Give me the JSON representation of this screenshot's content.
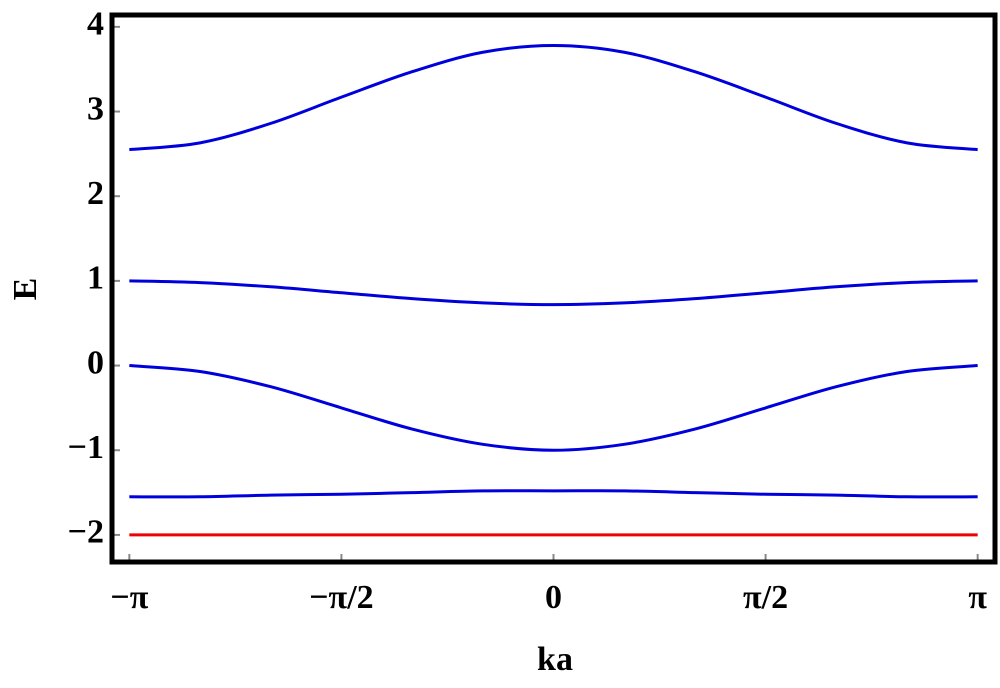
{
  "chart_data": {
    "type": "line",
    "x_label": "ka",
    "y_label": "E",
    "x": [
      -3.1416,
      -2.618,
      -2.0944,
      -1.5708,
      -1.0472,
      -0.5236,
      0,
      0.5236,
      1.0472,
      1.5708,
      2.0944,
      2.618,
      3.1416
    ],
    "series": [
      {
        "color": "#0000dd",
        "values": [
          2.55,
          2.63,
          2.86,
          3.17,
          3.47,
          3.7,
          3.78,
          3.7,
          3.47,
          3.17,
          2.86,
          2.63,
          2.55
        ]
      },
      {
        "color": "#0000dd",
        "values": [
          1.0,
          0.98,
          0.93,
          0.86,
          0.79,
          0.74,
          0.72,
          0.74,
          0.79,
          0.86,
          0.93,
          0.98,
          1.0
        ]
      },
      {
        "color": "#0000dd",
        "values": [
          0,
          -0.07,
          -0.25,
          -0.5,
          -0.75,
          -0.93,
          -1,
          -0.93,
          -0.75,
          -0.5,
          -0.25,
          -0.07,
          0
        ]
      },
      {
        "color": "#0000dd",
        "values": [
          -1.55,
          -1.55,
          -1.53,
          -1.52,
          -1.5,
          -1.48,
          -1.48,
          -1.48,
          -1.5,
          -1.52,
          -1.53,
          -1.55,
          -1.55
        ]
      },
      {
        "color": "#ee0000",
        "values": [
          -2,
          -2,
          -2,
          -2,
          -2,
          -2,
          -2,
          -2,
          -2,
          -2,
          -2,
          -2,
          -2
        ]
      }
    ],
    "xlim": [
      -3.27,
      3.27
    ],
    "ylim": [
      -2.32,
      4.14
    ],
    "xticks": [
      {
        "value": -3.1416,
        "label": "−π"
      },
      {
        "value": -1.5708,
        "label": "−π/2"
      },
      0,
      {
        "value": 1.5708,
        "label": "π/2"
      },
      {
        "value": 3.1416,
        "label": "π"
      }
    ],
    "yticks": [
      {
        "value": -2,
        "label": "−2"
      },
      {
        "value": -1,
        "label": "−1"
      },
      0,
      1,
      2,
      3,
      4
    ]
  }
}
